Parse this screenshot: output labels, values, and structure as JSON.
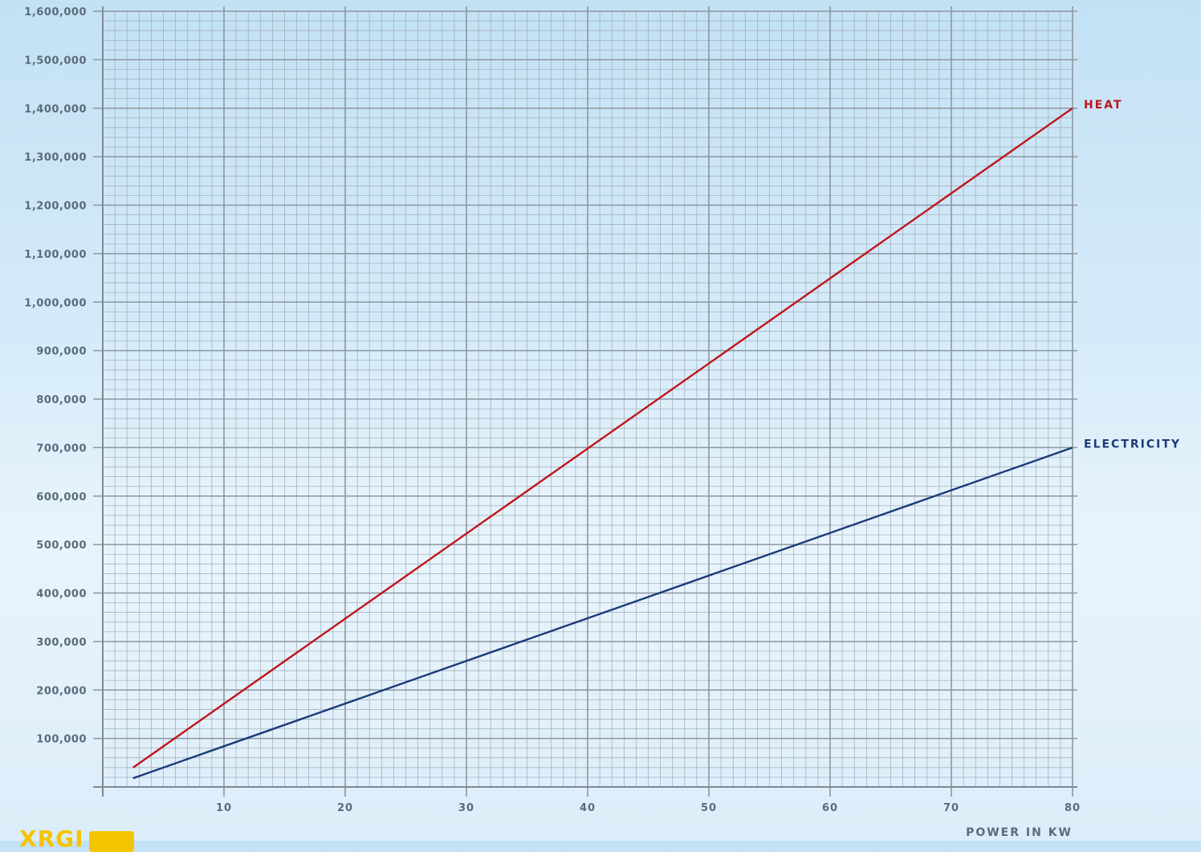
{
  "chart_data": {
    "type": "line",
    "xlabel": "POWER IN KW",
    "ylabel": "",
    "xlim": [
      0,
      80
    ],
    "ylim": [
      0,
      1600000
    ],
    "x_ticks": [
      10,
      20,
      30,
      40,
      50,
      60,
      70,
      80
    ],
    "x_tick_labels": [
      "10",
      "20",
      "30",
      "40",
      "50",
      "60",
      "70",
      "80"
    ],
    "y_ticks": [
      100000,
      200000,
      300000,
      400000,
      500000,
      600000,
      700000,
      800000,
      900000,
      1000000,
      1100000,
      1200000,
      1300000,
      1400000,
      1500000,
      1600000
    ],
    "y_tick_labels": [
      "100,000",
      "200,000",
      "300,000",
      "400,000",
      "500,000",
      "600,000",
      "700,000",
      "800,000",
      "900,000",
      "1,000,000",
      "1,100,000",
      "1,200,000",
      "1,300,000",
      "1,400,000",
      "1,500,000",
      "1,600,000"
    ],
    "grid": true,
    "series": [
      {
        "name": "HEAT",
        "color": "#c0161c",
        "x": [
          2.5,
          80
        ],
        "y": [
          40000,
          1400000
        ]
      },
      {
        "name": "ELECTRICITY",
        "color": "#1c3a78",
        "x": [
          2.5,
          80
        ],
        "y": [
          18000,
          700000
        ]
      }
    ]
  },
  "logo": {
    "text": "XRGI"
  }
}
